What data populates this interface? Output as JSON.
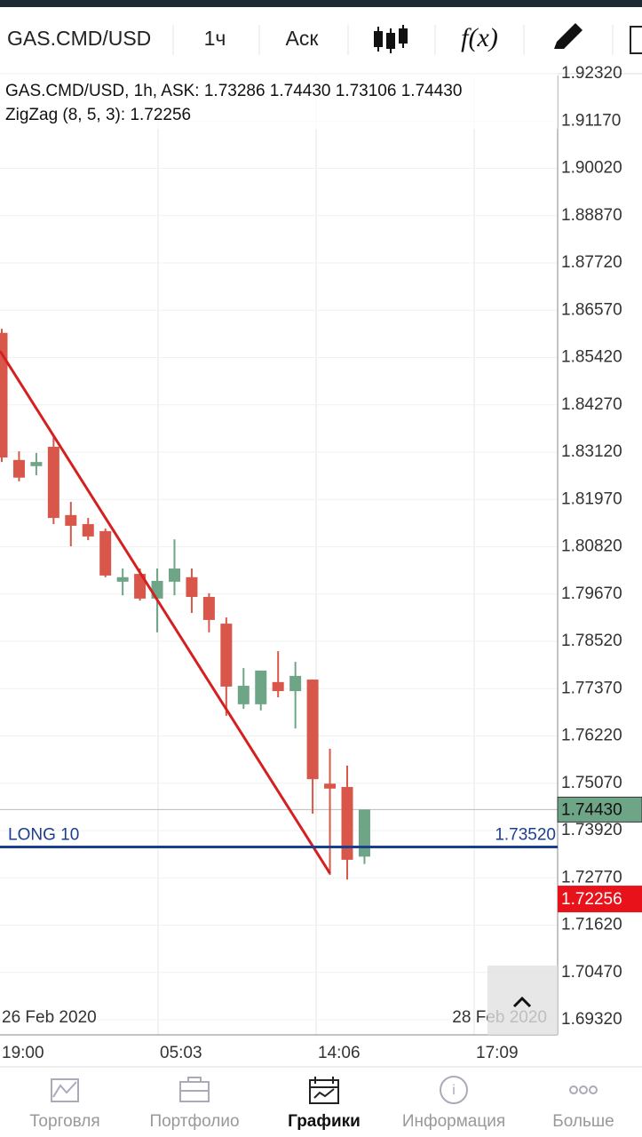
{
  "toolbar": {
    "symbol": "GAS.CMD/USD",
    "timeframe": "1ч",
    "price_side": "Аск",
    "function_label": "f(x)"
  },
  "chart_data": {
    "type": "candlestick",
    "title": "GAS.CMD/USD, 1h, ASK: 1.73286 1.74430 1.73106 1.74430",
    "indicator": "ZigZag (8, 5, 3): 1.72256",
    "open": [
      1.8602,
      1.8293,
      1.8278,
      1.8325,
      1.8159,
      1.8137,
      1.812,
      1.7997,
      1.8016,
      1.7956,
      1.7997,
      1.8008,
      1.796,
      1.7895,
      1.7699,
      1.7699,
      1.7753,
      1.7731,
      1.7759,
      1.7506,
      1.7498,
      1.73286
    ],
    "high": [
      1.8612,
      1.8314,
      1.831,
      1.8353,
      1.8191,
      1.8152,
      1.8126,
      1.8029,
      1.8029,
      1.8029,
      1.81,
      1.8029,
      1.7969,
      1.791,
      1.7787,
      1.7781,
      1.7828,
      1.7802,
      1.7759,
      1.7591,
      1.755,
      1.7443
    ],
    "low": [
      1.8288,
      1.8241,
      1.8256,
      1.8137,
      1.8083,
      1.8098,
      1.8008,
      1.7964,
      1.7951,
      1.7874,
      1.7964,
      1.7921,
      1.7874,
      1.7671,
      1.7688,
      1.7684,
      1.7716,
      1.764,
      1.7433,
      1.7284,
      1.7273,
      1.73106
    ],
    "close": [
      1.8299,
      1.825,
      1.8288,
      1.8152,
      1.8133,
      1.8107,
      1.8012,
      1.8008,
      1.7956,
      1.7999,
      1.8029,
      1.796,
      1.7904,
      1.7742,
      1.7744,
      1.7781,
      1.7731,
      1.7768,
      1.7517,
      1.7494,
      1.7321,
      1.7443
    ],
    "up_color": "#6fa587",
    "down_color": "#d9574a",
    "zigzag_values": [
      1.8558,
      1.7288
    ],
    "zigzag_color": "#d42020",
    "ylim": [
      1.68953,
      1.92277
    ],
    "yticks": [
      {
        "value": 1.9232,
        "label": "1.92320"
      },
      {
        "value": 1.9117,
        "label": "1.91170"
      },
      {
        "value": 1.9002,
        "label": "1.90020"
      },
      {
        "value": 1.8887,
        "label": "1.88870"
      },
      {
        "value": 1.8772,
        "label": "1.87720"
      },
      {
        "value": 1.8657,
        "label": "1.86570"
      },
      {
        "value": 1.8542,
        "label": "1.85420"
      },
      {
        "value": 1.8427,
        "label": "1.84270"
      },
      {
        "value": 1.8312,
        "label": "1.83120"
      },
      {
        "value": 1.8197,
        "label": "1.81970"
      },
      {
        "value": 1.8082,
        "label": "1.80820"
      },
      {
        "value": 1.7967,
        "label": "1.79670"
      },
      {
        "value": 1.7852,
        "label": "1.78520"
      },
      {
        "value": 1.7737,
        "label": "1.77370"
      },
      {
        "value": 1.7622,
        "label": "1.76220"
      },
      {
        "value": 1.7507,
        "label": "1.75070"
      },
      {
        "value": 1.7392,
        "label": "1.73920"
      },
      {
        "value": 1.7277,
        "label": "1.72770"
      },
      {
        "value": 1.7162,
        "label": "1.71620"
      },
      {
        "value": 1.7047,
        "label": "1.70470"
      },
      {
        "value": 1.6932,
        "label": "1.69320"
      }
    ],
    "current_price": {
      "value": 1.7443,
      "label": "1.74430"
    },
    "zigzag_price": {
      "value": 1.72256,
      "label": "1.72256"
    },
    "position": {
      "label": "LONG 10",
      "price": {
        "value": 1.7352,
        "label": "1.73520"
      }
    },
    "dates": [
      "26 Feb 2020",
      "28 Feb 2020"
    ],
    "time_labels": [
      "19:00",
      "05:03",
      "14:06",
      "17:09"
    ]
  },
  "nav": [
    "Торговля",
    "Портфолио",
    "Графики",
    "Информация",
    "Больше"
  ]
}
